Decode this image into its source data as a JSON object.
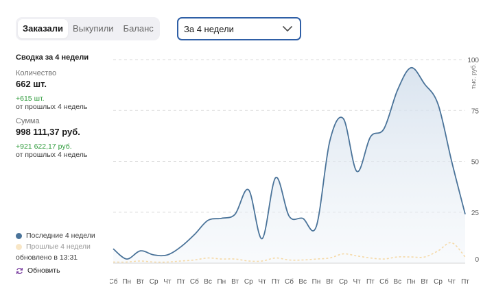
{
  "tabs": [
    {
      "label": "Заказали",
      "active": true
    },
    {
      "label": "Выкупили",
      "active": false
    },
    {
      "label": "Баланс",
      "active": false
    }
  ],
  "period": {
    "selected": "За 4 недели"
  },
  "summary": {
    "title": "Сводка за 4 недели",
    "quantity": {
      "label": "Количество",
      "value": "662 шт.",
      "delta": "+615 шт.",
      "delta_note": "от прошлых 4 недель"
    },
    "amount": {
      "label": "Сумма",
      "value": "998 111,37 руб.",
      "delta": "+921 622,17 руб.",
      "delta_note": "от прошлых 4 недель"
    }
  },
  "legend": {
    "current": "Последние 4 недели",
    "previous": "Прошлые 4 недели",
    "updated": "обновлено в 13:31",
    "refresh": "Обновить"
  },
  "colors": {
    "current_line": "#4a7399",
    "current_fill": "#dce6f0",
    "previous_line": "#f5d9a6",
    "accent": "#2f5fa6",
    "positive": "#2e9b3b"
  },
  "chart_data": {
    "type": "area",
    "ylabel": "тыс. руб.",
    "ylim": [
      0,
      100
    ],
    "yticks": [
      0,
      25,
      50,
      75,
      100
    ],
    "grid": true,
    "x": [
      "Сб",
      "Пн",
      "Вт",
      "Ср",
      "Чт",
      "Пт",
      "Сб",
      "Вс",
      "Пн",
      "Вт",
      "Ср",
      "Чт",
      "Пт",
      "Сб",
      "Вс",
      "Пн",
      "Вт",
      "Ср",
      "Чт",
      "Пт",
      "Сб",
      "Вс",
      "Пн",
      "Вт",
      "Ср",
      "Чт",
      "Пт"
    ],
    "series": [
      {
        "name": "Последние 4 недели",
        "values": [
          7,
          2,
          6,
          4,
          4,
          8,
          14,
          21,
          22,
          24,
          36,
          12,
          42,
          23,
          22,
          18,
          60,
          71,
          45,
          62,
          66,
          85,
          96,
          88,
          78,
          50,
          24
        ]
      },
      {
        "name": "Прошлые 4 недели",
        "values": [
          0.5,
          0.5,
          1,
          0.5,
          0.5,
          1,
          1.5,
          2.5,
          2,
          2,
          1,
          1,
          2.5,
          1.5,
          1.5,
          2,
          2.5,
          4.5,
          3.5,
          2.5,
          2,
          3,
          3,
          3,
          6,
          10,
          3
        ]
      }
    ]
  }
}
